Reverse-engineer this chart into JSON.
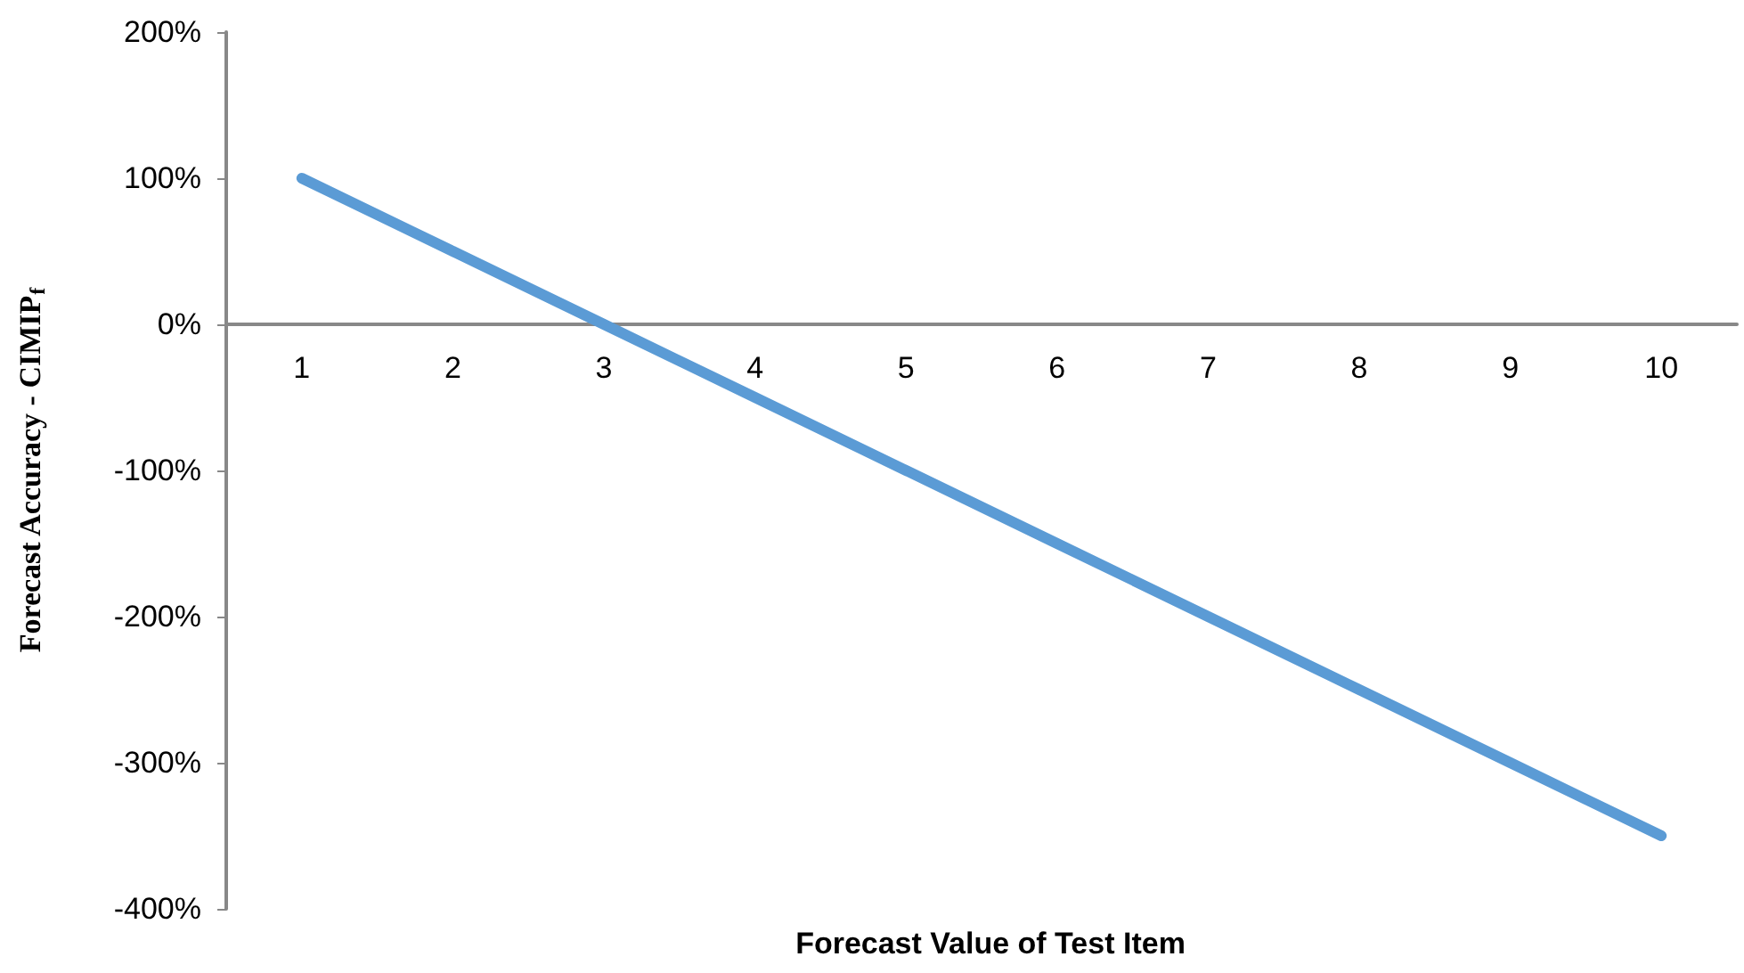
{
  "chart_data": {
    "type": "line",
    "xlabel": "Forecast Value of Test Item",
    "ylabel": "Forecast Accuracy - CIMIP$_{f}$",
    "categories": [
      "1",
      "2",
      "3",
      "4",
      "5",
      "6",
      "7",
      "8",
      "9",
      "10"
    ],
    "series": [
      {
        "color": "#5b9bd5",
        "values": [
          100,
          50,
          0,
          -50,
          -100,
          -150,
          -200,
          -250,
          -300,
          -350
        ]
      }
    ],
    "ylim": [
      -400,
      200
    ],
    "yticks": [
      {
        "value": -400,
        "label": "-400%"
      },
      {
        "value": -300,
        "label": "-300%"
      },
      {
        "value": -200,
        "label": "-200%"
      },
      {
        "value": -100,
        "label": "-100%"
      },
      {
        "value": 0,
        "label": "0%"
      },
      {
        "value": 100,
        "label": "100%"
      },
      {
        "value": 200,
        "label": "200%"
      }
    ],
    "marker": "none",
    "line_style": "solid"
  }
}
